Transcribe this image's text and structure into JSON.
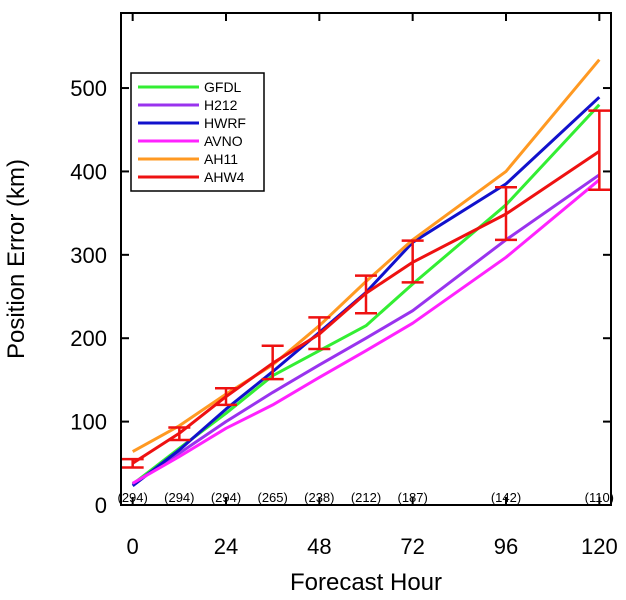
{
  "chart_data": {
    "type": "line",
    "xlabel": "Forecast Hour",
    "ylabel": "Position Error (km)",
    "xlim": [
      -3,
      123
    ],
    "ylim": [
      0,
      590
    ],
    "x_ticks": [
      0,
      24,
      48,
      72,
      96,
      120
    ],
    "x_tick_labels": [
      "0",
      "24",
      "48",
      "72",
      "96",
      "120"
    ],
    "y_ticks": [
      0,
      100,
      200,
      300,
      400,
      500
    ],
    "y_tick_labels": [
      "0",
      "100",
      "200",
      "300",
      "400",
      "500"
    ],
    "x": [
      0,
      12,
      24,
      36,
      48,
      60,
      72,
      96,
      120
    ],
    "series": [
      {
        "name": "GFDL",
        "color": "#33ee33",
        "values": [
          25,
          68,
          110,
          155,
          185,
          215,
          265,
          360,
          480
        ]
      },
      {
        "name": "H212",
        "color": "#9933ee",
        "values": [
          25,
          62,
          100,
          135,
          168,
          200,
          233,
          318,
          396
        ]
      },
      {
        "name": "HWRF",
        "color": "#1111cc",
        "values": [
          23,
          66,
          115,
          160,
          207,
          255,
          315,
          385,
          489
        ]
      },
      {
        "name": "AVNO",
        "color": "#ff22ff",
        "values": [
          26,
          58,
          92,
          120,
          153,
          185,
          218,
          297,
          390
        ]
      },
      {
        "name": "AH11",
        "color": "#ff9922",
        "values": [
          64,
          95,
          133,
          168,
          215,
          268,
          318,
          400,
          534
        ]
      },
      {
        "name": "AHW4",
        "color": "#ee1111",
        "values": [
          50,
          86,
          130,
          170,
          205,
          254,
          291,
          349,
          424
        ]
      }
    ],
    "error_bars": {
      "series": "AHW4",
      "x": [
        0,
        12,
        24,
        36,
        48,
        60,
        72,
        96,
        120
      ],
      "low": [
        45,
        78,
        120,
        151,
        187,
        230,
        267,
        318,
        378
      ],
      "high": [
        55,
        93,
        140,
        191,
        225,
        275,
        317,
        381,
        473
      ]
    },
    "sample_counts": {
      "x": [
        0,
        12,
        24,
        36,
        48,
        60,
        72,
        96,
        120
      ],
      "labels": [
        "(294)",
        "(294)",
        "(294)",
        "(265)",
        "(238)",
        "(212)",
        "(187)",
        "(142)",
        "(110)"
      ]
    },
    "legend_position": "top-left",
    "grid": false
  }
}
